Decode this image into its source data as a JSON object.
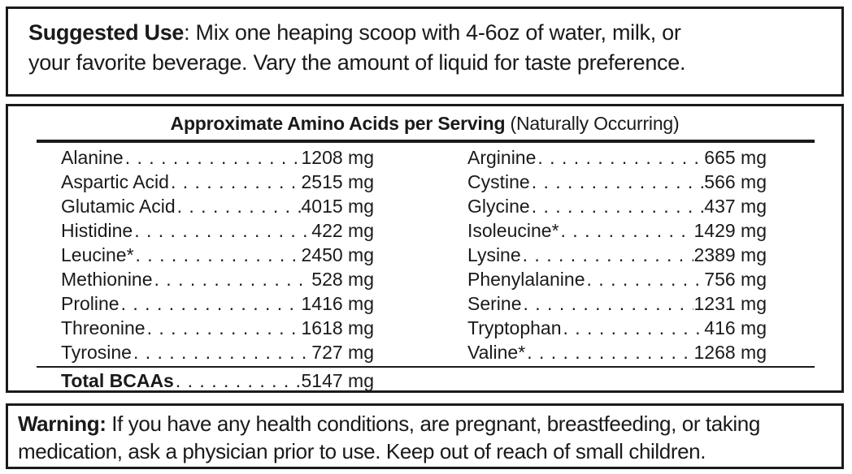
{
  "colors": {
    "text": "#1a1a1a",
    "border": "#1a1a1a",
    "background": "#ffffff"
  },
  "suggested_use": {
    "label": "Suggested Use",
    "line1_rest": ": Mix one heaping scoop with 4-6oz of water, milk, or",
    "line2": "your favorite beverage. Vary the amount of liquid for taste preference."
  },
  "amino_panel": {
    "title_bold": "Approximate Amino Acids per Serving",
    "title_regular": " (Naturally Occurring)",
    "left_column": [
      {
        "name": "Alanine",
        "amount": "1208 mg"
      },
      {
        "name": "Aspartic Acid",
        "amount": "2515 mg"
      },
      {
        "name": "Glutamic Acid",
        "amount": "4015 mg"
      },
      {
        "name": "Histidine",
        "amount": "422 mg"
      },
      {
        "name": "Leucine*",
        "amount": "2450 mg"
      },
      {
        "name": "Methionine",
        "amount": "528 mg"
      },
      {
        "name": "Proline",
        "amount": "1416 mg"
      },
      {
        "name": "Threonine",
        "amount": "1618 mg"
      },
      {
        "name": "Tyrosine",
        "amount": "727 mg"
      }
    ],
    "right_column": [
      {
        "name": "Arginine",
        "amount": "665 mg"
      },
      {
        "name": "Cystine",
        "amount": "566 mg"
      },
      {
        "name": "Glycine",
        "amount": "437 mg"
      },
      {
        "name": "Isoleucine*",
        "amount": "1429 mg"
      },
      {
        "name": "Lysine",
        "amount": "2389 mg"
      },
      {
        "name": "Phenylalanine",
        "amount": "756 mg"
      },
      {
        "name": "Serine",
        "amount": "1231 mg"
      },
      {
        "name": "Tryptophan",
        "amount": "416 mg"
      },
      {
        "name": "Valine*",
        "amount": "1268 mg"
      }
    ],
    "total": {
      "name": "Total BCAAs",
      "amount": "5147 mg"
    }
  },
  "warning": {
    "label": "Warning:",
    "line1_rest": " If you have any health conditions, are pregnant, breastfeeding, or taking",
    "line2": "medication, ask a physician prior to use. Keep out of reach of small children."
  }
}
